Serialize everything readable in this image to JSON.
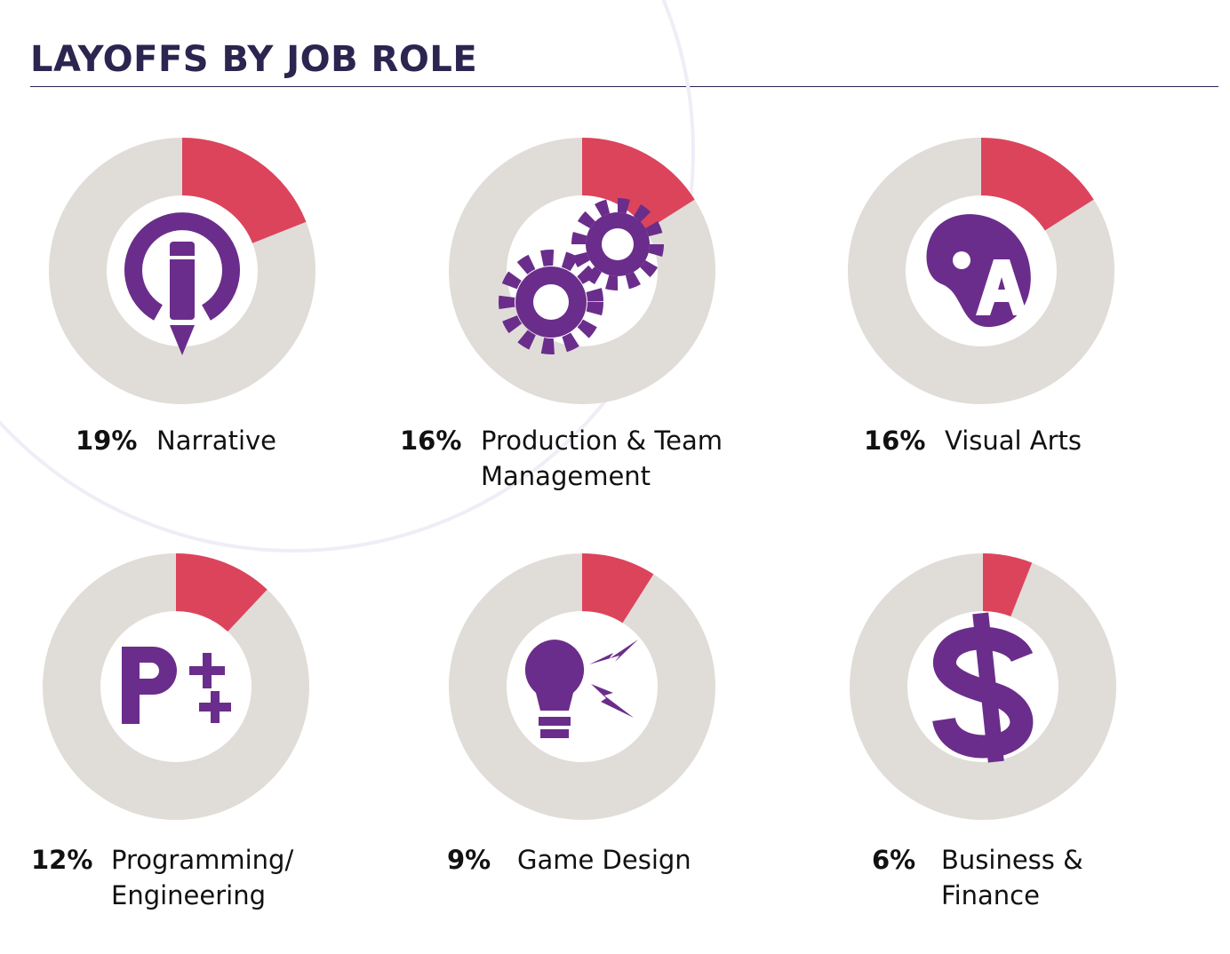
{
  "title": "LAYOFFS BY JOB ROLE",
  "chart_data": [
    {
      "type": "donut",
      "categories": [
        "Narrative"
      ],
      "values": [
        19
      ],
      "value_labels": [
        "19%"
      ],
      "color": "#dc445c",
      "track_color": "#e0ddd8"
    },
    {
      "type": "donut",
      "categories": [
        "Production & Team Management"
      ],
      "values": [
        16
      ],
      "value_labels": [
        "16%"
      ],
      "color": "#dc445c",
      "track_color": "#e0ddd8"
    },
    {
      "type": "donut",
      "categories": [
        "Visual Arts"
      ],
      "values": [
        16
      ],
      "value_labels": [
        "16%"
      ],
      "color": "#dc445c",
      "track_color": "#e0ddd8"
    },
    {
      "type": "donut",
      "categories": [
        "Programming/ Engineering"
      ],
      "values": [
        12
      ],
      "value_labels": [
        "12%"
      ],
      "color": "#dc445c",
      "track_color": "#e0ddd8"
    },
    {
      "type": "donut",
      "categories": [
        "Game Design"
      ],
      "values": [
        9
      ],
      "value_labels": [
        "9%"
      ],
      "color": "#dc445c",
      "track_color": "#e0ddd8"
    },
    {
      "type": "donut",
      "categories": [
        "Business & Finance"
      ],
      "values": [
        6
      ],
      "value_labels": [
        "6%"
      ],
      "color": "#dc445c",
      "track_color": "#e0ddd8"
    }
  ]
}
